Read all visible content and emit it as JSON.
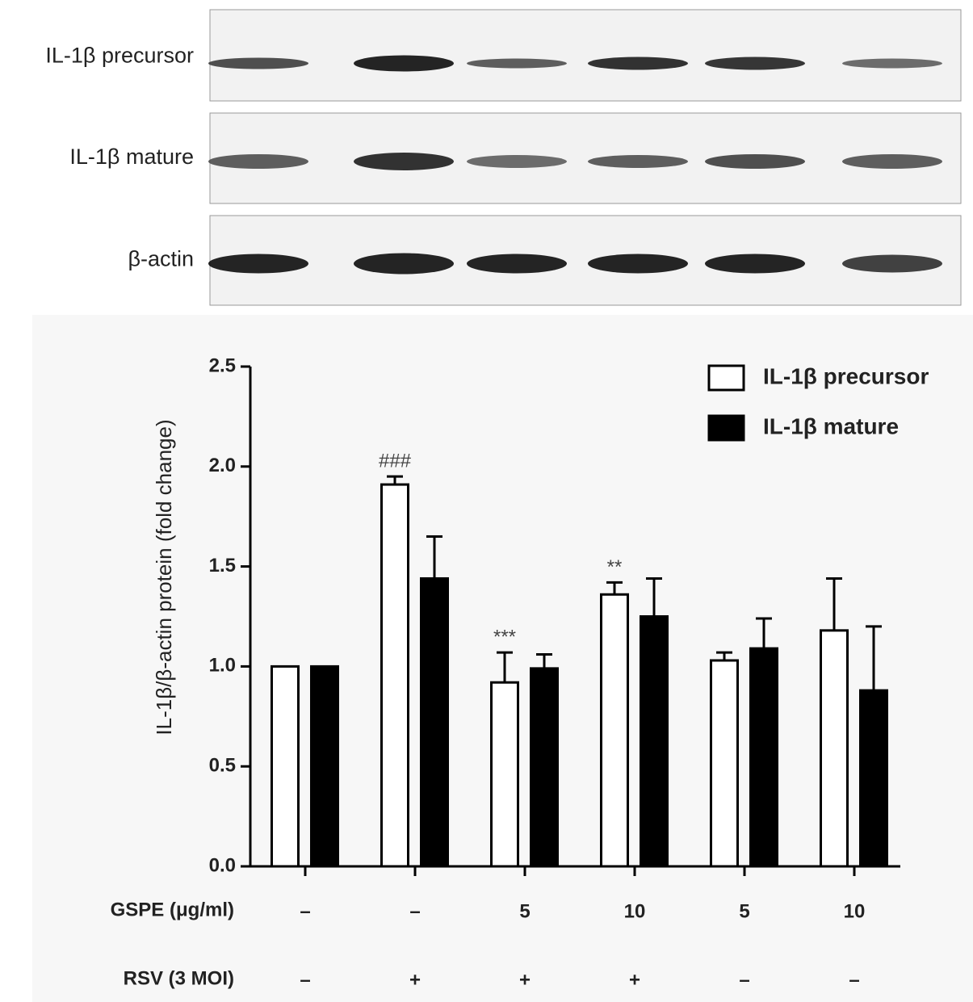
{
  "blot": {
    "labels": [
      "IL-1β precursor",
      "IL-1β  mature",
      "β-actin"
    ]
  },
  "chart_data": {
    "type": "bar",
    "ylabel": "IL-1β/β-actin protein (fold change)",
    "ylim": [
      0,
      2.5
    ],
    "yticks": [
      {
        "value": 0,
        "label": "0.0"
      },
      0.5,
      {
        "value": 1,
        "label": "1.0"
      },
      1.5,
      {
        "value": 2,
        "label": "2.0"
      },
      2.5
    ],
    "category_rows": [
      {
        "label": "GSPE (μg/ml)",
        "values": [
          "–",
          "–",
          "5",
          "10",
          "5",
          "10"
        ]
      },
      {
        "label": "RSV (3 MOI)",
        "values": [
          "–",
          "+",
          "+",
          "+",
          "–",
          "–"
        ]
      }
    ],
    "legend": "top-right",
    "series": [
      {
        "name": "IL-1β precursor",
        "color": "#ffffff",
        "values": [
          1.0,
          1.91,
          0.92,
          1.36,
          1.03,
          1.18
        ],
        "errors": [
          0,
          0.04,
          0.15,
          0.06,
          0.04,
          0.26
        ],
        "annotations": [
          null,
          "###",
          "***",
          "**",
          null,
          null
        ]
      },
      {
        "name": "IL-1β mature",
        "color": "#000000",
        "values": [
          1.0,
          1.44,
          0.99,
          1.25,
          1.09,
          0.88
        ],
        "errors": [
          0,
          0.21,
          0.07,
          0.19,
          0.15,
          0.32
        ]
      }
    ]
  }
}
